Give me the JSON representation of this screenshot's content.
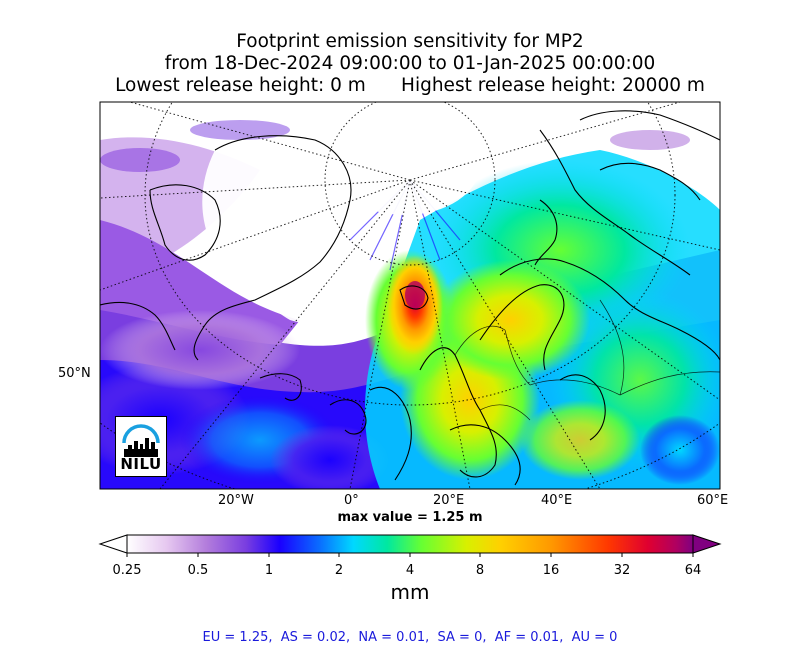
{
  "title": {
    "line1": "Footprint emission sensitivity for MP2",
    "line2": "from 18-Dec-2024 09:00:00 to 01-Jan-2025 00:00:00",
    "line3": "Lowest release height: 0 m      Highest release height: 20000 m"
  },
  "map": {
    "lat_label": "50°N",
    "lon_labels": [
      "20°W",
      "0°",
      "20°E",
      "40°E",
      "60°E"
    ],
    "max_value_text": "max value = 1.25 m",
    "logo_text": "NILU"
  },
  "colorbar": {
    "labels": [
      "0.25",
      "0.5",
      "1",
      "2",
      "4",
      "8",
      "16",
      "32",
      "64"
    ],
    "unit": "mm",
    "colors": [
      "#ffffff",
      "#e6c8f0",
      "#b37ddc",
      "#7a3ee0",
      "#1a00ff",
      "#0a6dff",
      "#00d8ff",
      "#00e8a0",
      "#66ff33",
      "#d8f000",
      "#ffd000",
      "#ff9800",
      "#ff3800",
      "#e00030",
      "#b00060",
      "#800080"
    ]
  },
  "stats": "EU = 1.25,  AS = 0.02,  NA = 0.01,  SA = 0,  AF = 0.01,  AU = 0"
}
